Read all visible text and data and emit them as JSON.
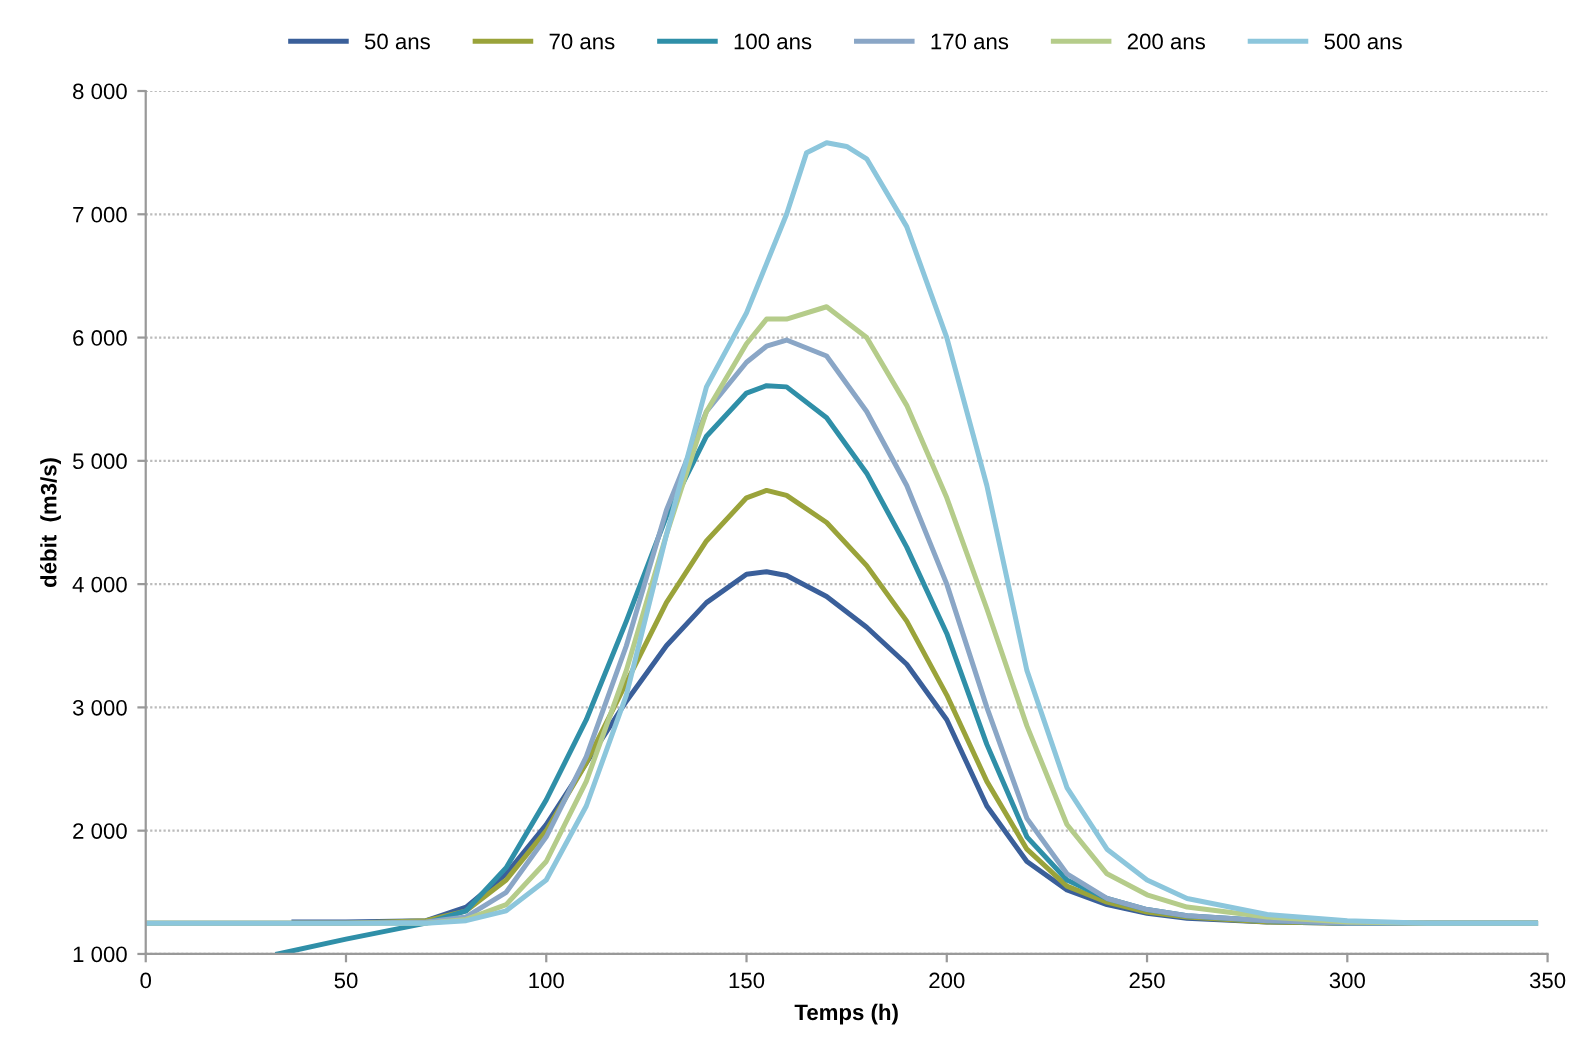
{
  "chart_data": {
    "type": "line",
    "xlabel": "Temps (h)",
    "ylabel": "débit  (m3/s)",
    "xlim": [
      0,
      350
    ],
    "ylim": [
      1000,
      8000
    ],
    "xticks": [
      0,
      50,
      100,
      150,
      200,
      250,
      300,
      350
    ],
    "yticks": [
      {
        "value": 1000,
        "label": "1 000"
      },
      {
        "value": 2000,
        "label": "2 000"
      },
      {
        "value": 3000,
        "label": "3 000"
      },
      {
        "value": 4000,
        "label": "4 000"
      },
      {
        "value": 5000,
        "label": "5 000"
      },
      {
        "value": 6000,
        "label": "6 000"
      },
      {
        "value": 7000,
        "label": "7 000"
      },
      {
        "value": 8000,
        "label": "8 000"
      }
    ],
    "grid": "y",
    "legend": "top",
    "marker": "none",
    "line_style": "solid",
    "series": [
      {
        "name": "50 ans",
        "color": "#3a5f9a",
        "x": [
          37,
          50,
          70,
          80,
          90,
          100,
          110,
          120,
          130,
          140,
          150,
          155,
          160,
          170,
          180,
          190,
          200,
          210,
          220,
          230,
          240,
          250,
          260,
          280,
          300,
          320,
          347
        ],
        "values": [
          1260,
          1260,
          1270,
          1380,
          1650,
          2050,
          2550,
          3050,
          3500,
          3850,
          4080,
          4100,
          4070,
          3900,
          3650,
          3350,
          2900,
          2200,
          1750,
          1520,
          1400,
          1330,
          1290,
          1260,
          1250,
          1250,
          1250
        ]
      },
      {
        "name": "70 ans",
        "color": "#9aa33a",
        "x": [
          0,
          50,
          70,
          80,
          90,
          100,
          110,
          120,
          130,
          140,
          150,
          155,
          160,
          170,
          180,
          190,
          200,
          210,
          220,
          230,
          240,
          250,
          260,
          280,
          300,
          320,
          347
        ],
        "values": [
          1250,
          1250,
          1270,
          1350,
          1600,
          2000,
          2550,
          3200,
          3850,
          4350,
          4700,
          4760,
          4720,
          4500,
          4150,
          3700,
          3100,
          2400,
          1850,
          1550,
          1420,
          1340,
          1300,
          1260,
          1250,
          1250,
          1250
        ]
      },
      {
        "name": "100 ans",
        "color": "#2f8fa8",
        "x": [
          33,
          50,
          70,
          80,
          90,
          100,
          110,
          120,
          130,
          140,
          150,
          155,
          160,
          170,
          180,
          190,
          200,
          210,
          220,
          230,
          240,
          250,
          260,
          280,
          300,
          320,
          347
        ],
        "values": [
          1000,
          1120,
          1250,
          1350,
          1700,
          2250,
          2900,
          3700,
          4550,
          5200,
          5550,
          5610,
          5600,
          5350,
          4900,
          4300,
          3600,
          2700,
          1950,
          1600,
          1450,
          1360,
          1310,
          1270,
          1250,
          1250,
          1250
        ]
      },
      {
        "name": "170 ans",
        "color": "#8aa6c6",
        "x": [
          0,
          50,
          70,
          80,
          90,
          100,
          110,
          120,
          130,
          140,
          150,
          155,
          160,
          170,
          180,
          190,
          200,
          210,
          220,
          230,
          240,
          250,
          260,
          280,
          300,
          320,
          347
        ],
        "values": [
          1250,
          1250,
          1260,
          1300,
          1500,
          1950,
          2600,
          3500,
          4600,
          5400,
          5800,
          5930,
          5980,
          5850,
          5400,
          4800,
          4000,
          3000,
          2100,
          1650,
          1450,
          1360,
          1310,
          1270,
          1250,
          1250,
          1250
        ]
      },
      {
        "name": "200 ans",
        "color": "#b5cc8a",
        "x": [
          0,
          50,
          70,
          80,
          90,
          100,
          110,
          120,
          130,
          140,
          150,
          155,
          160,
          170,
          180,
          190,
          200,
          210,
          220,
          230,
          240,
          250,
          260,
          280,
          300,
          320,
          347
        ],
        "values": [
          1250,
          1250,
          1250,
          1280,
          1400,
          1750,
          2400,
          3300,
          4400,
          5400,
          5950,
          6150,
          6150,
          6250,
          6000,
          5450,
          4700,
          3800,
          2850,
          2050,
          1650,
          1480,
          1380,
          1300,
          1260,
          1250,
          1250
        ]
      },
      {
        "name": "500 ans",
        "color": "#8cc6dc",
        "x": [
          0,
          50,
          70,
          80,
          90,
          100,
          110,
          120,
          130,
          140,
          150,
          155,
          160,
          165,
          170,
          175,
          180,
          190,
          200,
          210,
          220,
          230,
          240,
          250,
          260,
          280,
          300,
          320,
          347
        ],
        "values": [
          1250,
          1250,
          1250,
          1270,
          1350,
          1600,
          2200,
          3100,
          4400,
          5600,
          6200,
          6600,
          7000,
          7500,
          7580,
          7550,
          7450,
          6900,
          6000,
          4800,
          3300,
          2350,
          1850,
          1600,
          1450,
          1320,
          1270,
          1250,
          1250
        ]
      }
    ]
  }
}
